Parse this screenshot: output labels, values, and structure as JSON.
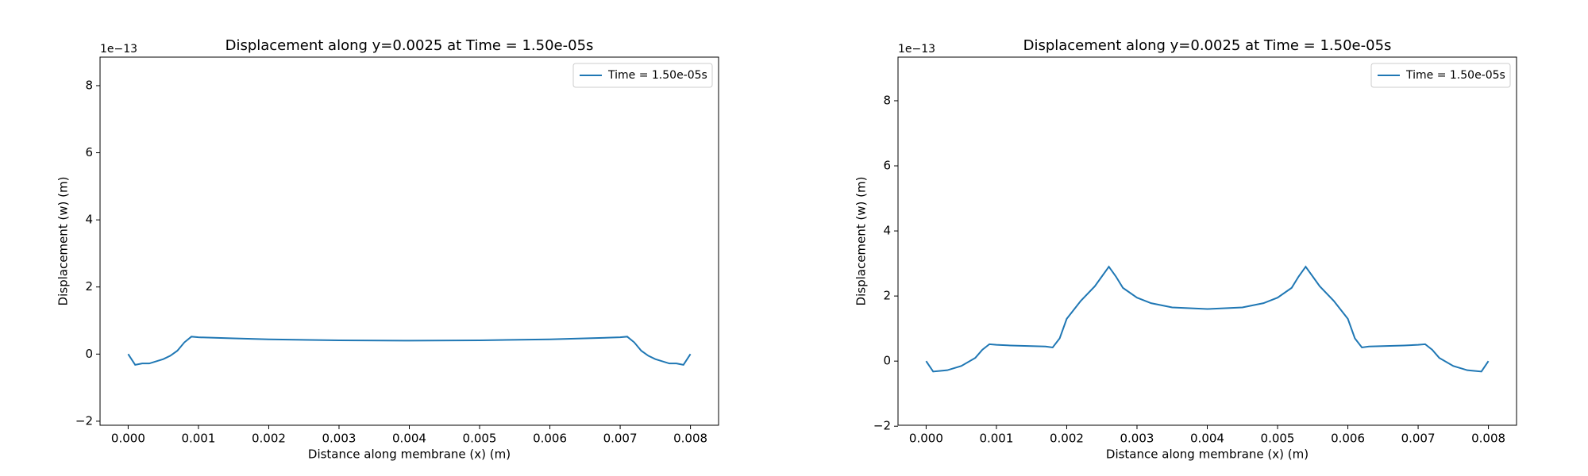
{
  "chart_data": [
    {
      "type": "line",
      "title": "Displacement along y=0.0025 at Time = 1.50e-05s",
      "xlabel": "Distance along membrane (x) (m)",
      "ylabel": "Displacement (w) (m)",
      "offset_label": "1e−13",
      "legend": "upper right",
      "xlim": [
        -0.0004,
        0.0084
      ],
      "xticks": [
        {
          "value": 0,
          "label": "0.000"
        },
        {
          "value": 0.001,
          "label": "0.001"
        },
        {
          "value": 0.002,
          "label": "0.002"
        },
        {
          "value": 0.003,
          "label": "0.003"
        },
        {
          "value": 0.004,
          "label": "0.004"
        },
        {
          "value": 0.005,
          "label": "0.005"
        },
        {
          "value": 0.006,
          "label": "0.006"
        },
        {
          "value": 0.007,
          "label": "0.007"
        },
        {
          "value": 0.008,
          "label": "0.008"
        }
      ],
      "ylim": [
        -2.12,
        8.85
      ],
      "yticks": [
        {
          "value": -2,
          "label": "−2"
        },
        0,
        2,
        4,
        6,
        8
      ],
      "x": [
        0,
        0.0001,
        0.0002,
        0.0003,
        0.0005,
        0.0006,
        0.0007,
        0.0008,
        0.0009,
        0.001,
        0.0015,
        0.002,
        0.003,
        0.004,
        0.005,
        0.006,
        0.0065,
        0.007,
        0.0071,
        0.0072,
        0.0073,
        0.0074,
        0.0075,
        0.0077,
        0.0078,
        0.0079,
        0.008
      ],
      "series": [
        {
          "name": "Time = 1.50e-05s",
          "color": "#1f77b4",
          "values": [
            0,
            -0.32,
            -0.28,
            -0.28,
            -0.15,
            -0.05,
            0.1,
            0.35,
            0.52,
            0.5,
            0.47,
            0.44,
            0.41,
            0.4,
            0.41,
            0.44,
            0.47,
            0.5,
            0.52,
            0.35,
            0.1,
            -0.05,
            -0.15,
            -0.28,
            -0.28,
            -0.32,
            0
          ]
        }
      ]
    },
    {
      "type": "line",
      "title": "Displacement along y=0.0025 at Time = 1.50e-05s",
      "xlabel": "Distance along membrane (x) (m)",
      "ylabel": "Displacement (w) (m)",
      "offset_label": "1e−13",
      "legend": "upper right",
      "xlim": [
        -0.0004,
        0.0084
      ],
      "xticks": [
        {
          "value": 0,
          "label": "0.000"
        },
        {
          "value": 0.001,
          "label": "0.001"
        },
        {
          "value": 0.002,
          "label": "0.002"
        },
        {
          "value": 0.003,
          "label": "0.003"
        },
        {
          "value": 0.004,
          "label": "0.004"
        },
        {
          "value": 0.005,
          "label": "0.005"
        },
        {
          "value": 0.006,
          "label": "0.006"
        },
        {
          "value": 0.007,
          "label": "0.007"
        },
        {
          "value": 0.008,
          "label": "0.008"
        }
      ],
      "ylim": [
        -1.97,
        9.34
      ],
      "yticks": [
        {
          "value": -2,
          "label": "−2"
        },
        0,
        2,
        4,
        6,
        8
      ],
      "x": [
        0,
        0.0001,
        0.0002,
        0.0003,
        0.0005,
        0.0007,
        0.0008,
        0.0009,
        0.001,
        0.0012,
        0.0015,
        0.0017,
        0.0018,
        0.0019,
        0.002,
        0.0022,
        0.0024,
        0.0025,
        0.0026,
        0.0027,
        0.0028,
        0.003,
        0.0032,
        0.0035,
        0.004,
        0.0045,
        0.0048,
        0.005,
        0.0052,
        0.0053,
        0.0054,
        0.0055,
        0.0056,
        0.0058,
        0.006,
        0.0061,
        0.0062,
        0.0063,
        0.0065,
        0.0068,
        0.007,
        0.0071,
        0.0072,
        0.0073,
        0.0075,
        0.0077,
        0.0078,
        0.0079,
        0.008
      ],
      "series": [
        {
          "name": "Time = 1.50e-05s",
          "color": "#1f77b4",
          "values": [
            0,
            -0.32,
            -0.3,
            -0.28,
            -0.15,
            0.1,
            0.35,
            0.52,
            0.5,
            0.48,
            0.46,
            0.45,
            0.42,
            0.7,
            1.3,
            1.85,
            2.3,
            2.6,
            2.9,
            2.6,
            2.25,
            1.95,
            1.78,
            1.65,
            1.6,
            1.65,
            1.78,
            1.95,
            2.25,
            2.6,
            2.9,
            2.6,
            2.3,
            1.85,
            1.3,
            0.7,
            0.42,
            0.45,
            0.46,
            0.48,
            0.5,
            0.52,
            0.35,
            0.1,
            -0.15,
            -0.28,
            -0.3,
            -0.32,
            0
          ]
        }
      ]
    }
  ]
}
